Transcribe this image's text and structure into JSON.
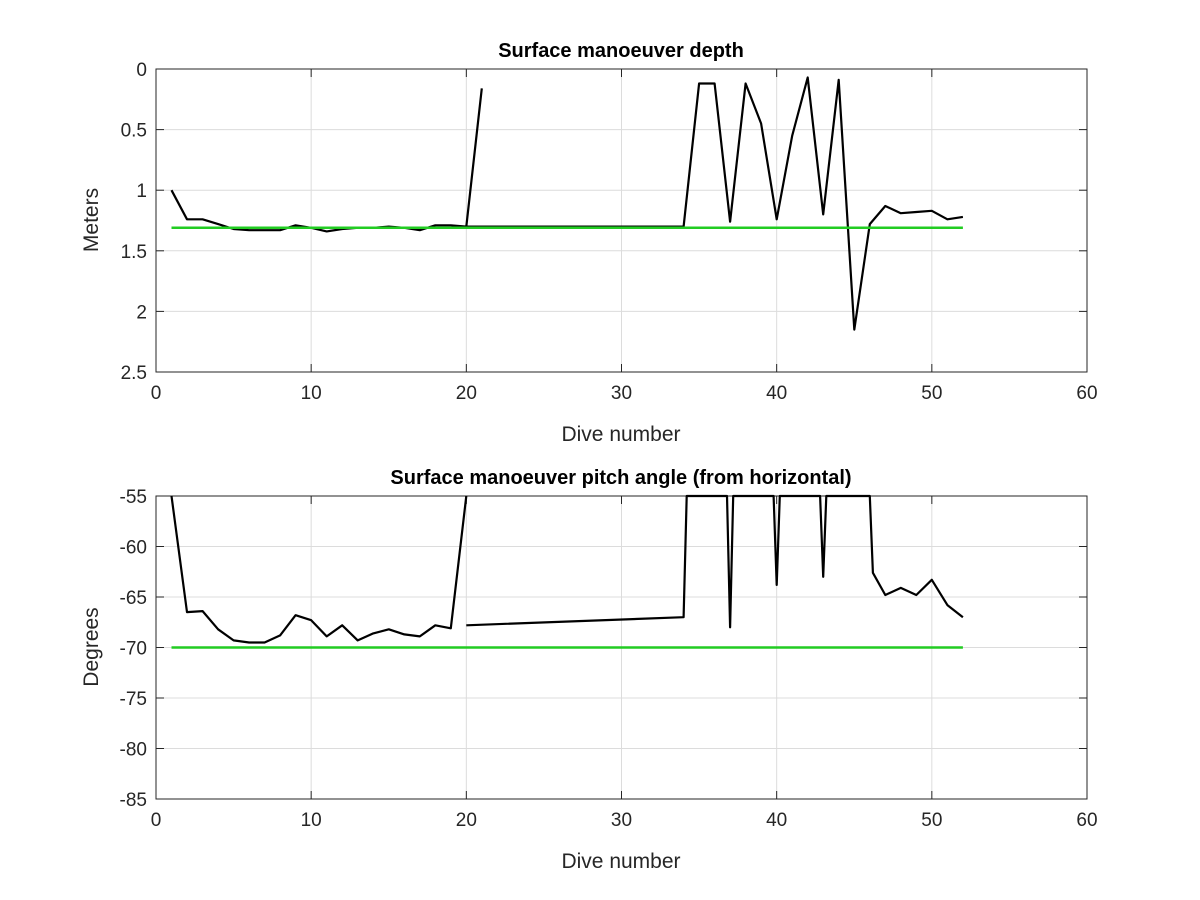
{
  "chart_data": [
    {
      "type": "line",
      "title": "Surface manoeuver depth",
      "xlabel": "Dive number",
      "ylabel": "Meters",
      "xlim": [
        0,
        60
      ],
      "ylim": [
        0,
        2.5
      ],
      "y_reversed": true,
      "grid": true,
      "xticks": [
        0,
        10,
        20,
        30,
        40,
        50,
        60
      ],
      "yticks": [
        0,
        0.5,
        1,
        1.5,
        2,
        2.5
      ],
      "xtick_labels": [
        "0",
        "10",
        "20",
        "30",
        "40",
        "50",
        "60"
      ],
      "ytick_labels": [
        "0",
        "0.5",
        "1",
        "1.5",
        "2",
        "2.5"
      ],
      "series": [
        {
          "color": "#000000",
          "segments": [
            {
              "x": [
                1,
                2,
                3,
                4,
                5,
                6,
                7,
                8,
                9,
                10,
                11,
                12,
                13,
                14,
                15,
                16,
                17,
                18,
                19,
                20,
                21
              ],
              "y": [
                1.0,
                1.24,
                1.24,
                1.28,
                1.32,
                1.33,
                1.33,
                1.33,
                1.29,
                1.31,
                1.34,
                1.32,
                1.31,
                1.31,
                1.3,
                1.31,
                1.33,
                1.29,
                1.29,
                1.3,
                0.16
              ]
            },
            {
              "x": [
                20,
                34,
                35,
                36,
                37,
                38,
                39,
                40,
                41,
                42,
                43,
                44,
                45,
                46,
                47,
                48,
                49,
                50,
                51,
                52
              ],
              "y": [
                1.3,
                1.3,
                0.12,
                0.12,
                1.26,
                0.12,
                0.45,
                1.24,
                0.55,
                0.07,
                1.2,
                0.09,
                2.15,
                1.28,
                1.13,
                1.19,
                1.18,
                1.17,
                1.24,
                1.22
              ]
            }
          ]
        },
        {
          "color": "#22cc22",
          "x": [
            1,
            52
          ],
          "y": [
            1.31,
            1.31
          ]
        }
      ]
    },
    {
      "type": "line",
      "title": "Surface manoeuver pitch angle (from horizontal)",
      "xlabel": "Dive number",
      "ylabel": "Degrees",
      "xlim": [
        0,
        60
      ],
      "ylim": [
        -85,
        -55
      ],
      "grid": true,
      "xticks": [
        0,
        10,
        20,
        30,
        40,
        50,
        60
      ],
      "yticks": [
        -85,
        -80,
        -75,
        -70,
        -65,
        -60,
        -55
      ],
      "xtick_labels": [
        "0",
        "10",
        "20",
        "30",
        "40",
        "50",
        "60"
      ],
      "ytick_labels": [
        "-85",
        "-80",
        "-75",
        "-70",
        "-65",
        "-60",
        "-55"
      ],
      "series": [
        {
          "color": "#000000",
          "segments": [
            {
              "x": [
                1,
                2,
                3,
                4,
                5,
                6,
                7,
                8,
                9,
                10,
                11,
                12,
                13,
                14,
                15,
                16,
                17,
                18,
                19,
                20
              ],
              "y": [
                -55,
                -66.5,
                -66.4,
                -68.2,
                -69.3,
                -69.5,
                -69.5,
                -68.8,
                -66.8,
                -67.3,
                -68.9,
                -67.8,
                -69.3,
                -68.6,
                -68.2,
                -68.7,
                -68.9,
                -67.8,
                -68.1,
                -55
              ]
            },
            {
              "x": [
                20,
                34,
                34.2,
                36.8,
                37,
                37.2,
                39.8,
                40,
                40.2,
                42.8,
                43,
                43.2,
                46,
                46.2,
                47,
                48,
                49,
                50,
                51,
                52
              ],
              "y": [
                -67.8,
                -67.0,
                -55,
                -55,
                -68.0,
                -55,
                -55,
                -63.8,
                -55,
                -55,
                -63.0,
                -55,
                -55,
                -62.6,
                -64.8,
                -64.1,
                -64.8,
                -63.3,
                -65.8,
                -67.0
              ]
            }
          ]
        },
        {
          "color": "#22cc22",
          "x": [
            1,
            52
          ],
          "y": [
            -70,
            -70
          ]
        }
      ]
    }
  ]
}
